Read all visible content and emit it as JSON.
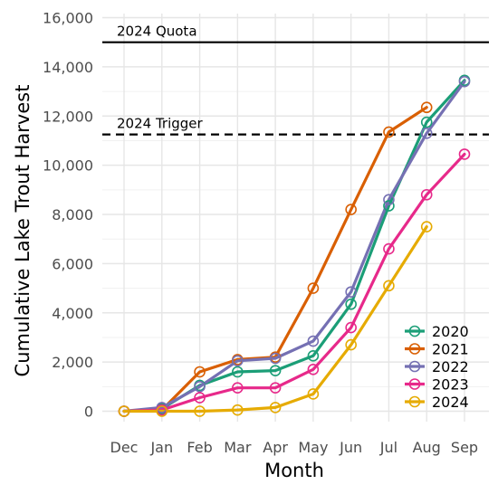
{
  "chart_data": {
    "type": "line",
    "xlabel": "Month",
    "ylabel": "Cumulative Lake Trout Harvest",
    "categories": [
      "Dec",
      "Jan",
      "Feb",
      "Mar",
      "Apr",
      "May",
      "Jun",
      "Jul",
      "Aug",
      "Sep"
    ],
    "ylim": [
      0,
      16000
    ],
    "yticks": [
      0,
      2000,
      4000,
      6000,
      8000,
      10000,
      12000,
      14000,
      16000
    ],
    "ytick_labels": [
      "0",
      "2,000",
      "4,000",
      "6,000",
      "8,000",
      "10,000",
      "12,000",
      "14,000",
      "16,000"
    ],
    "grid": true,
    "legend_position": "bottom-right",
    "reference_lines": [
      {
        "label": "2024 Quota",
        "value": 15000,
        "style": "solid"
      },
      {
        "label": "2024 Trigger",
        "value": 11250,
        "style": "dashed"
      }
    ],
    "series": [
      {
        "name": "2020",
        "color": "#1b9e77",
        "values": [
          0,
          100,
          1050,
          1600,
          1650,
          2250,
          4350,
          8350,
          11750,
          13450
        ]
      },
      {
        "name": "2021",
        "color": "#d95f02",
        "values": [
          0,
          50,
          1600,
          2100,
          2200,
          5000,
          8200,
          11350,
          12350,
          null
        ]
      },
      {
        "name": "2022",
        "color": "#7570b3",
        "values": [
          0,
          150,
          1000,
          2050,
          2150,
          2850,
          4850,
          8600,
          11300,
          13400
        ]
      },
      {
        "name": "2023",
        "color": "#e7298a",
        "values": [
          0,
          50,
          550,
          950,
          950,
          1700,
          3400,
          6600,
          8800,
          10450
        ]
      },
      {
        "name": "2024",
        "color": "#e6ab02",
        "values": [
          0,
          0,
          0,
          50,
          150,
          700,
          2700,
          5100,
          7500,
          null
        ]
      }
    ]
  }
}
